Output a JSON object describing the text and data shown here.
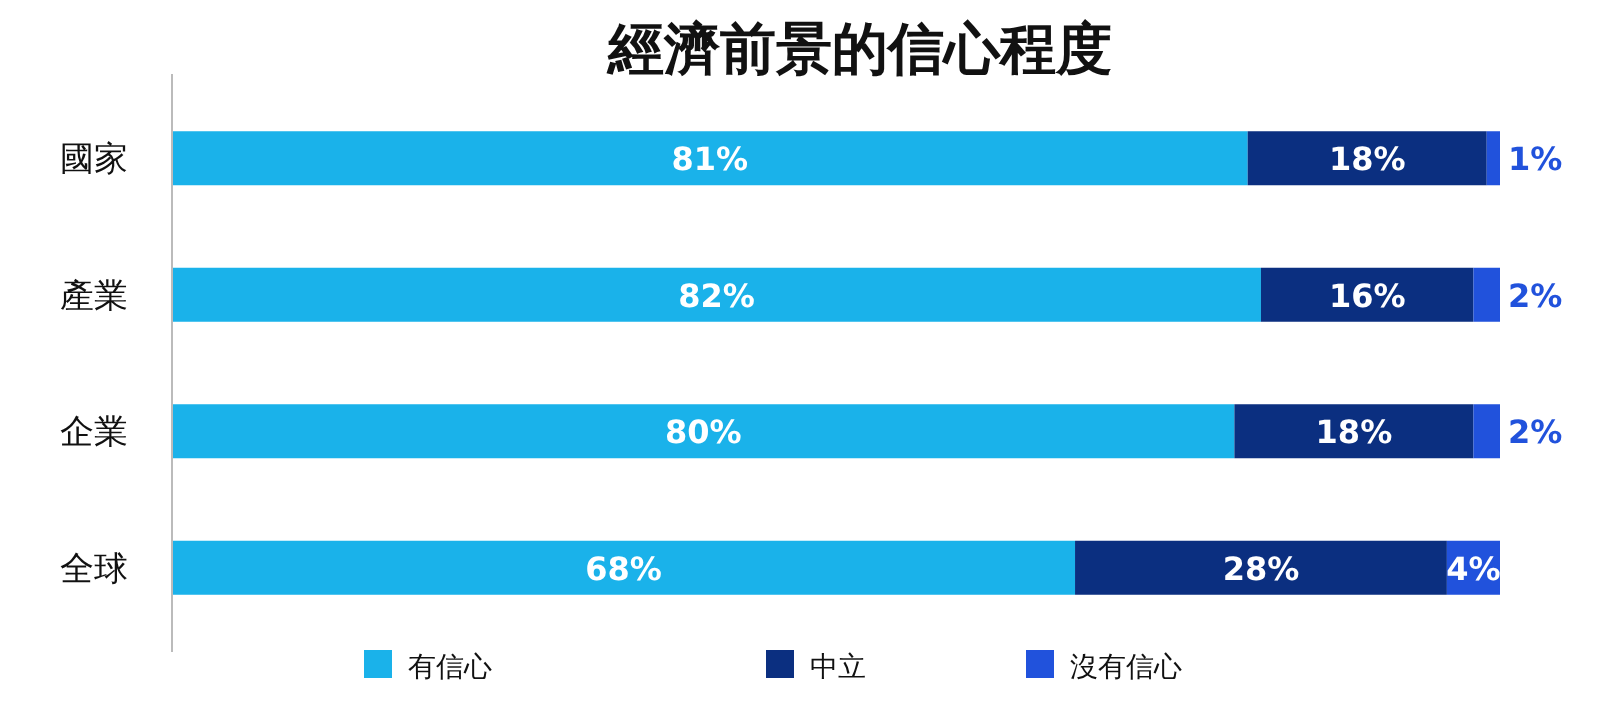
{
  "chart_data": {
    "type": "bar",
    "orientation": "horizontal",
    "stacked": true,
    "title": "經濟前景的信心程度",
    "categories": [
      "國家",
      "產業",
      "企業",
      "全球"
    ],
    "series": [
      {
        "name": "有信心",
        "color": "#1ab2ea",
        "values": [
          81,
          82,
          80,
          68
        ],
        "value_labels": [
          "81%",
          "82%",
          "80%",
          "68%"
        ]
      },
      {
        "name": "中立",
        "color": "#0b2f80",
        "values": [
          18,
          16,
          18,
          28
        ],
        "value_labels": [
          "18%",
          "16%",
          "18%",
          "28%"
        ]
      },
      {
        "name": "沒有信心",
        "color": "#2152dc",
        "values": [
          1,
          2,
          2,
          4
        ],
        "value_labels": [
          "1%",
          "2%",
          "2%",
          "4%"
        ]
      }
    ],
    "legend": "bottom"
  }
}
